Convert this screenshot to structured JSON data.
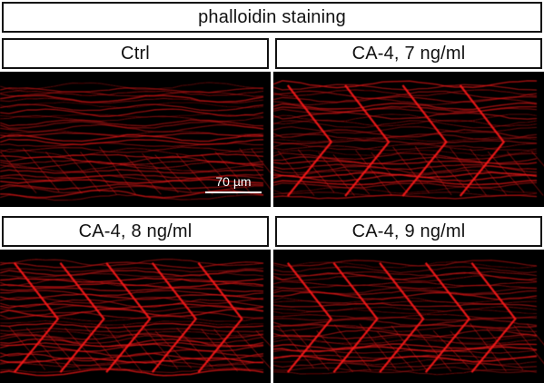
{
  "figure": {
    "title": "phalloidin staining"
  },
  "panels": [
    {
      "id": "ctrl",
      "label": "Ctrl",
      "chevrons": 0
    },
    {
      "id": "ca4-7",
      "label": "CA-4, 7 ng/ml",
      "chevrons": 4
    },
    {
      "id": "ca4-8",
      "label": "CA-4, 8 ng/ml",
      "chevrons": 5
    },
    {
      "id": "ca4-9",
      "label": "CA-4, 9 ng/ml",
      "chevrons": 5
    }
  ],
  "scale_bar": {
    "label": "70 µm"
  },
  "colors": {
    "stain": "#ff1a1a",
    "background": "#000000",
    "label_border": "#111111"
  }
}
